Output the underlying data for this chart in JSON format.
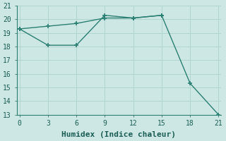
{
  "line1_x": [
    0,
    3,
    6,
    9,
    12,
    15
  ],
  "line1_y": [
    19.3,
    19.5,
    19.7,
    20.1,
    20.1,
    20.3
  ],
  "line2_x": [
    0,
    3,
    6,
    9,
    12,
    15,
    18,
    21
  ],
  "line2_y": [
    19.3,
    18.1,
    18.1,
    20.3,
    20.1,
    20.3,
    15.3,
    13.0
  ],
  "color": "#2a7f72",
  "bg_color": "#cde8e4",
  "grid_color": "#b0d4ce",
  "xlabel": "Humidex (Indice chaleur)",
  "xlim": [
    -0.3,
    21.3
  ],
  "ylim": [
    13,
    21
  ],
  "xticks": [
    0,
    3,
    6,
    9,
    12,
    15,
    18,
    21
  ],
  "yticks": [
    13,
    14,
    15,
    16,
    17,
    18,
    19,
    20,
    21
  ],
  "marker": "+",
  "markersize": 5,
  "linewidth": 1.0,
  "font_size": 8,
  "label_fontsize": 8
}
